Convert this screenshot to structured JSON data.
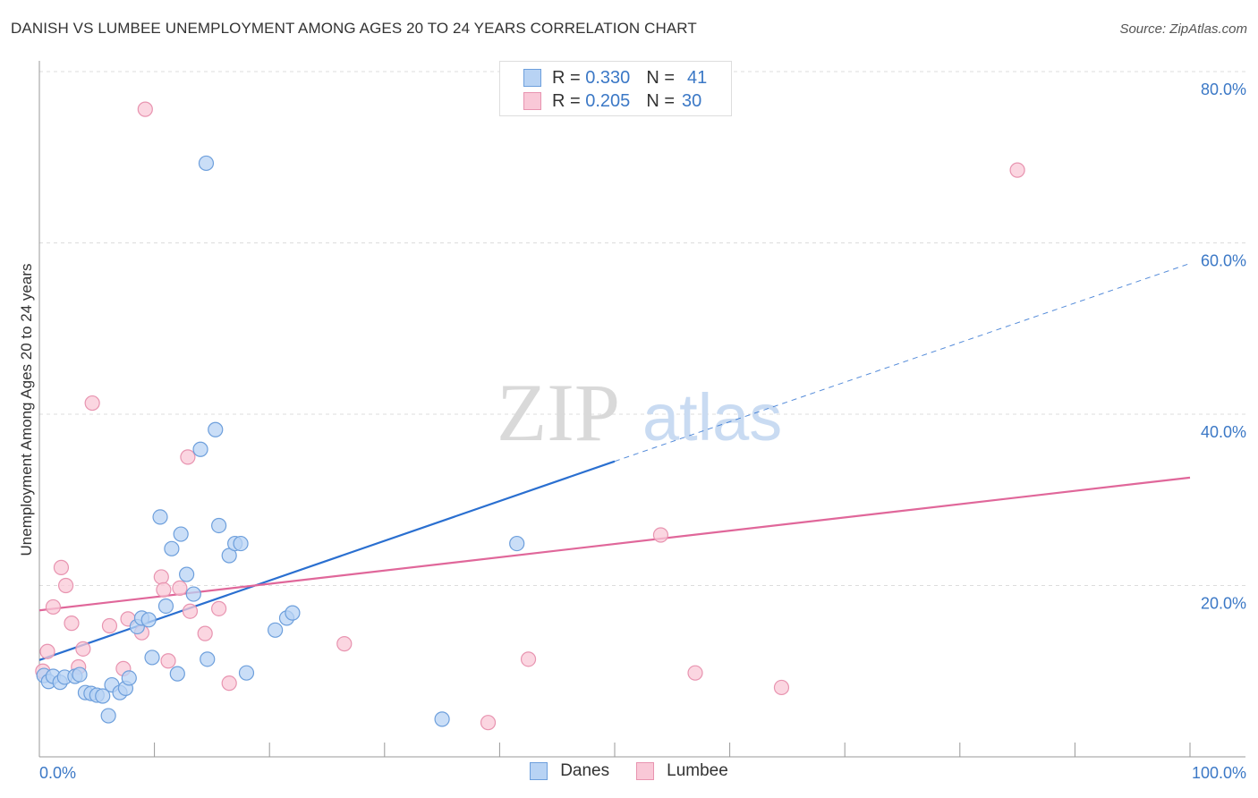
{
  "title": "DANISH VS LUMBEE UNEMPLOYMENT AMONG AGES 20 TO 24 YEARS CORRELATION CHART",
  "source": "Source: ZipAtlas.com",
  "watermark": {
    "zip": "ZIP",
    "atlas": "atlas"
  },
  "legend": {
    "danes": {
      "r_label": "R =",
      "r": "0.330",
      "n_label": "N =",
      "n": "41"
    },
    "lumbee": {
      "r_label": "R =",
      "r": "0.205",
      "n_label": "N =",
      "n": "30"
    }
  },
  "colors": {
    "danes_fill": "#b8d3f4",
    "danes_stroke": "#6d9fdc",
    "danes_line": "#2a6fd0",
    "lumbee_fill": "#f9c8d7",
    "lumbee_stroke": "#e894b0",
    "lumbee_line": "#e0679a",
    "tick_text": "#3b78c6"
  },
  "chart_data": {
    "type": "scatter",
    "title": "DANISH VS LUMBEE UNEMPLOYMENT AMONG AGES 20 TO 24 YEARS CORRELATION CHART",
    "xlabel": "",
    "ylabel": "Unemployment Among Ages 20 to 24 years",
    "xlim": [
      0,
      100
    ],
    "ylim": [
      0,
      80
    ],
    "x_tick_labels": [
      "0.0%",
      "100.0%"
    ],
    "y_ticks": [
      20,
      40,
      60,
      80
    ],
    "y_tick_labels": [
      "20.0%",
      "40.0%",
      "60.0%",
      "80.0%"
    ],
    "grid": true,
    "legend_position": "top-center",
    "series": [
      {
        "name": "Danes",
        "points": [
          [
            0.4,
            9.5
          ],
          [
            0.8,
            8.8
          ],
          [
            1.2,
            9.4
          ],
          [
            1.8,
            8.7
          ],
          [
            2.2,
            9.3
          ],
          [
            3.1,
            9.4
          ],
          [
            3.5,
            9.6
          ],
          [
            4.0,
            7.5
          ],
          [
            4.5,
            7.4
          ],
          [
            5.0,
            7.2
          ],
          [
            5.5,
            7.1
          ],
          [
            6.0,
            4.8
          ],
          [
            6.3,
            8.4
          ],
          [
            7.0,
            7.5
          ],
          [
            7.5,
            8.0
          ],
          [
            7.8,
            9.2
          ],
          [
            8.5,
            15.2
          ],
          [
            8.9,
            16.2
          ],
          [
            9.5,
            16.0
          ],
          [
            9.8,
            11.6
          ],
          [
            10.5,
            28.0
          ],
          [
            11.0,
            17.6
          ],
          [
            11.5,
            24.3
          ],
          [
            12.0,
            9.7
          ],
          [
            12.3,
            26.0
          ],
          [
            12.8,
            21.3
          ],
          [
            13.4,
            19.0
          ],
          [
            14.0,
            35.9
          ],
          [
            14.5,
            69.3
          ],
          [
            14.6,
            11.4
          ],
          [
            15.3,
            38.2
          ],
          [
            15.6,
            27.0
          ],
          [
            16.5,
            23.5
          ],
          [
            17.0,
            24.9
          ],
          [
            17.5,
            24.9
          ],
          [
            18.0,
            9.8
          ],
          [
            20.5,
            14.8
          ],
          [
            21.5,
            16.2
          ],
          [
            22.0,
            16.8
          ],
          [
            35.0,
            4.4
          ],
          [
            41.5,
            24.9
          ]
        ],
        "trend": {
          "x0": 0,
          "y0": 11.3,
          "x1": 50,
          "y1": 34.5,
          "dashed_to_x": 100,
          "dashed_to_y": 57.6
        }
      },
      {
        "name": "Lumbee",
        "points": [
          [
            0.3,
            10.0
          ],
          [
            0.7,
            12.3
          ],
          [
            1.2,
            17.5
          ],
          [
            1.9,
            22.1
          ],
          [
            2.3,
            20.0
          ],
          [
            2.8,
            15.6
          ],
          [
            3.4,
            10.5
          ],
          [
            3.8,
            12.6
          ],
          [
            4.6,
            41.3
          ],
          [
            6.1,
            15.3
          ],
          [
            7.3,
            10.3
          ],
          [
            7.7,
            16.1
          ],
          [
            8.9,
            14.5
          ],
          [
            9.2,
            75.6
          ],
          [
            10.6,
            21.0
          ],
          [
            10.8,
            19.5
          ],
          [
            11.2,
            11.2
          ],
          [
            12.2,
            19.7
          ],
          [
            12.9,
            35.0
          ],
          [
            13.1,
            17.0
          ],
          [
            14.4,
            14.4
          ],
          [
            15.6,
            17.3
          ],
          [
            16.5,
            8.6
          ],
          [
            26.5,
            13.2
          ],
          [
            39.0,
            4.0
          ],
          [
            42.5,
            11.4
          ],
          [
            54.0,
            25.9
          ],
          [
            57.0,
            9.8
          ],
          [
            64.5,
            8.1
          ],
          [
            85.0,
            68.5
          ]
        ],
        "trend": {
          "x0": 0,
          "y0": 17.1,
          "x1": 100,
          "y1": 32.6
        }
      }
    ]
  },
  "bottom_legend": {
    "danes": "Danes",
    "lumbee": "Lumbee"
  },
  "y_axis_label": "Unemployment Among Ages 20 to 24 years"
}
